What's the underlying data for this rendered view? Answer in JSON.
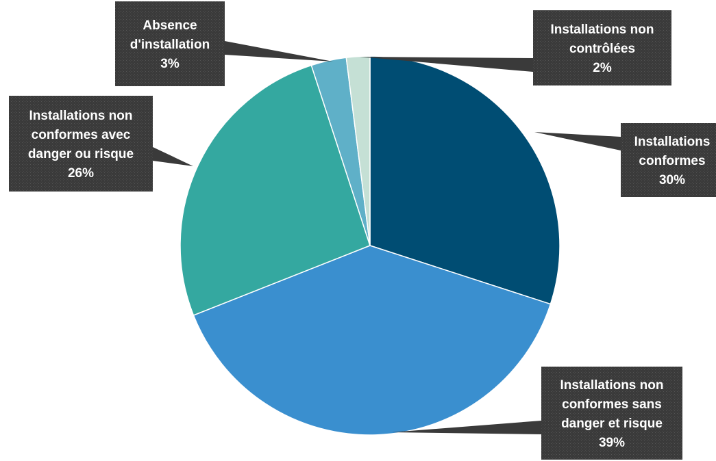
{
  "chart_data": {
    "type": "pie",
    "title": "",
    "slices": [
      {
        "label_lines": [
          "Installations",
          "conformes"
        ],
        "pct_label": "30%",
        "value": 30,
        "color": "#004d73"
      },
      {
        "label_lines": [
          "Installations non",
          "conformes sans",
          "danger et risque"
        ],
        "pct_label": "39%",
        "value": 39,
        "color": "#3a8fcf"
      },
      {
        "label_lines": [
          "Installations non",
          "conformes avec",
          "danger ou risque"
        ],
        "pct_label": "26%",
        "value": 26,
        "color": "#34a8a0"
      },
      {
        "label_lines": [
          "Absence",
          "d'installation"
        ],
        "pct_label": "3%",
        "value": 3,
        "color": "#5fb0c8"
      },
      {
        "label_lines": [
          "Installations non",
          "contrôlées"
        ],
        "pct_label": "2%",
        "value": 2,
        "color": "#c5e0d5"
      }
    ],
    "start_angle_deg": 0,
    "direction": "clockwise"
  }
}
